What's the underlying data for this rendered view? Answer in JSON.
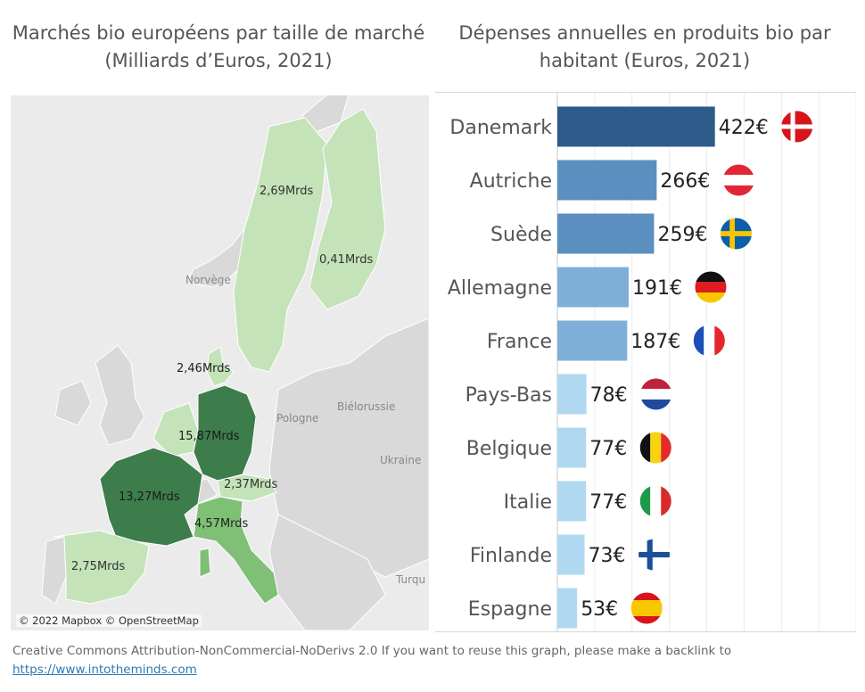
{
  "charts": {
    "map_title": "Marchés bio européens par taille de marché (Milliards d’Euros, 2021)",
    "bar_title": "Dépenses annuelles en produits bio par habitant (Euros, 2021)"
  },
  "map": {
    "attribution": "© 2022 Mapbox © OpenStreetMap",
    "place_labels": [
      "Norvège",
      "Biélorussie",
      "Pologne",
      "Ukraine",
      "Turqu"
    ],
    "markets": [
      {
        "country": "Suède",
        "label": "2,69Mrds",
        "value": 2.69
      },
      {
        "country": "Finlande",
        "label": "0,41Mrds",
        "value": 0.41
      },
      {
        "country": "Danemark",
        "label": "2,46Mrds",
        "value": 2.46
      },
      {
        "country": "Allemagne",
        "label": "15,87Mrds",
        "value": 15.87
      },
      {
        "country": "France",
        "label": "13,27Mrds",
        "value": 13.27
      },
      {
        "country": "Autriche",
        "label": "2,37Mrds",
        "value": 2.37
      },
      {
        "country": "Italie",
        "label": "4,57Mrds",
        "value": 4.57
      },
      {
        "country": "Espagne",
        "label": "2,75Mrds",
        "value": 2.75
      }
    ],
    "colors": {
      "light": "#c4e3b9",
      "mid": "#7fbf76",
      "dark": "#3d7d4c",
      "background": "#ebebeb",
      "neighbor": "#d9d9d9"
    }
  },
  "chart_data": {
    "type": "bar",
    "orientation": "horizontal",
    "title": "Dépenses annuelles en produits bio par habitant (Euros, 2021)",
    "categories": [
      "Danemark",
      "Autriche",
      "Suède",
      "Allemagne",
      "France",
      "Pays-Bas",
      "Belgique",
      "Italie",
      "Finlande",
      "Espagne"
    ],
    "values": [
      422,
      266,
      259,
      191,
      187,
      78,
      77,
      77,
      73,
      53
    ],
    "value_labels": [
      "422€",
      "266€",
      "259€",
      "191€",
      "187€",
      "78€",
      "77€",
      "77€",
      "73€",
      "53€"
    ],
    "xlim": [
      0,
      800
    ],
    "grid": true,
    "flags": [
      "denmark-flag",
      "austria-flag",
      "sweden-flag",
      "germany-flag",
      "france-flag",
      "netherlands-flag",
      "belgium-flag",
      "italy-flag",
      "finland-flag",
      "spain-flag"
    ],
    "bar_colors": [
      "#2d5b8a",
      "#5b8fc0",
      "#5b8fc0",
      "#7eafd8",
      "#7eafd8",
      "#b0d8f1",
      "#b0d8f1",
      "#b0d8f1",
      "#b0d8f1",
      "#b0d8f1"
    ]
  },
  "footer": {
    "credit": "Creative Commons Attribution-NonCommercial-NoDerivs 2.0 If you want to reuse this graph, please make a backlink to",
    "link": "https://www.intotheminds.com"
  }
}
